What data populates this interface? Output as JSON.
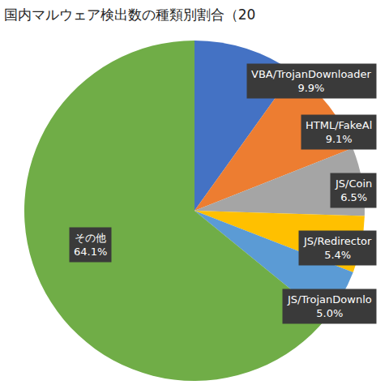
{
  "chart_data": {
    "type": "pie",
    "title": "国内マルウェア検出数の種類別割合（20",
    "categories": [
      "VBA/TrojanDownloader",
      "HTML/FakeAl",
      "JS/Coin",
      "JS/Redirector",
      "JS/TrojanDownlo",
      "その他"
    ],
    "values": [
      9.9,
      9.1,
      6.5,
      5.4,
      5.0,
      64.1
    ],
    "value_labels": [
      "9.9%",
      "9.1%",
      "6.5%",
      "5.4%",
      "5.0%",
      "64.1%"
    ],
    "colors": [
      "#4472c4",
      "#ed7d31",
      "#a5a5a5",
      "#ffc000",
      "#5b9bd5",
      "#70ad47"
    ],
    "data_labels": true
  }
}
